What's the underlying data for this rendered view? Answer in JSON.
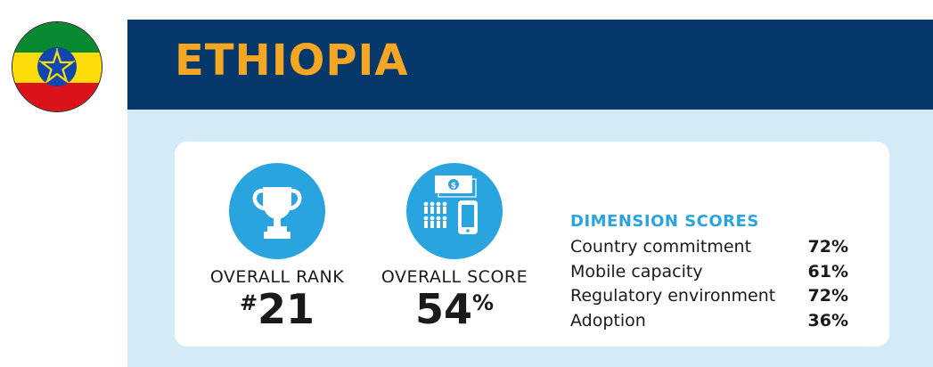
{
  "country": "ETHIOPIA",
  "flag_colors": {
    "green": "#078930",
    "yellow": "#fcdd09",
    "red": "#da121a",
    "emblem_blue": "#0f47af"
  },
  "colors": {
    "header_bg": "#06386b",
    "title": "#f5a623",
    "panel_bg": "#d3ebf7",
    "accent": "#2aa4df"
  },
  "rank": {
    "label": "OVERALL RANK",
    "hash": "#",
    "value": "21",
    "icon": "trophy-icon"
  },
  "score": {
    "label": "OVERALL SCORE",
    "value": "54",
    "unit": "%",
    "icon": "mobile-money-icon"
  },
  "dimensions": {
    "heading": "DIMENSION SCORES",
    "items": [
      {
        "name": "Country commitment",
        "value": "72%"
      },
      {
        "name": "Mobile capacity",
        "value": "61%"
      },
      {
        "name": "Regulatory environment",
        "value": "72%"
      },
      {
        "name": "Adoption",
        "value": "36%"
      }
    ]
  }
}
